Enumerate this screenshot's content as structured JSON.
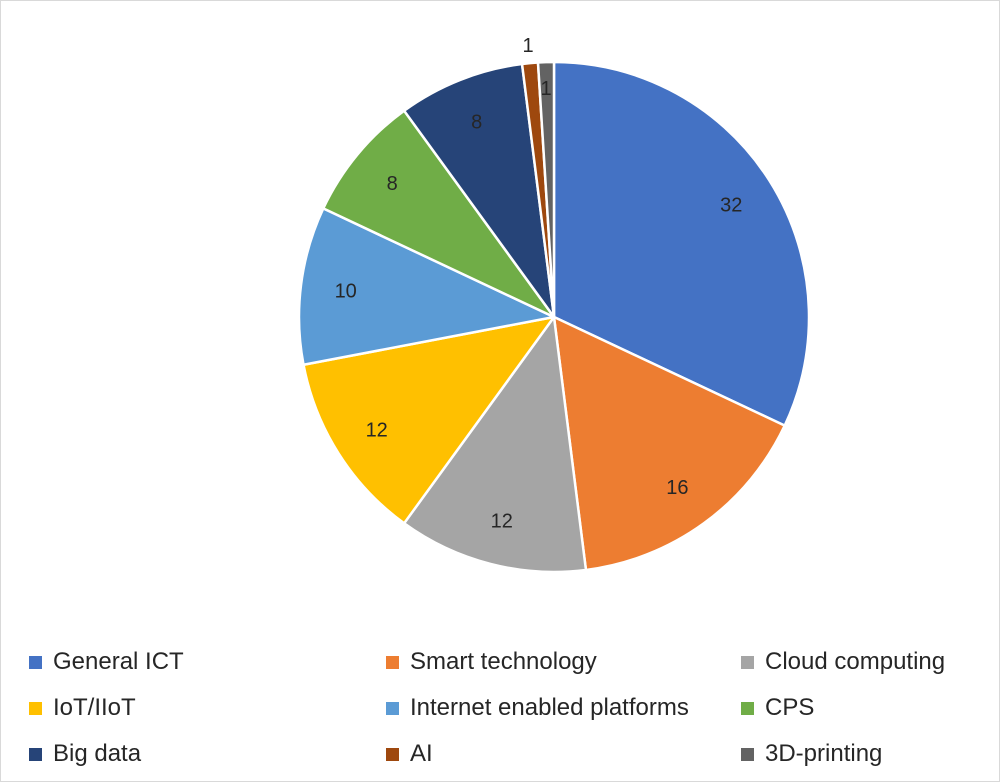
{
  "chart_data": {
    "type": "pie",
    "title": "",
    "categories": [
      "General ICT",
      "Smart technology",
      "Cloud computing",
      "IoT/IIoT",
      "Internet enabled platforms",
      "CPS",
      "Big data",
      "AI",
      "3D-printing"
    ],
    "values": [
      32,
      16,
      12,
      12,
      10,
      8,
      8,
      1,
      1
    ],
    "colors": [
      "#4472C4",
      "#ED7D31",
      "#A5A5A5",
      "#FFC000",
      "#5B9BD5",
      "#70AD47",
      "#264478",
      "#9E480E",
      "#636363"
    ],
    "data_labels": [
      "32",
      "16",
      "12",
      "12",
      "10",
      "8",
      "8",
      "1",
      "1"
    ],
    "legend_position": "bottom"
  }
}
